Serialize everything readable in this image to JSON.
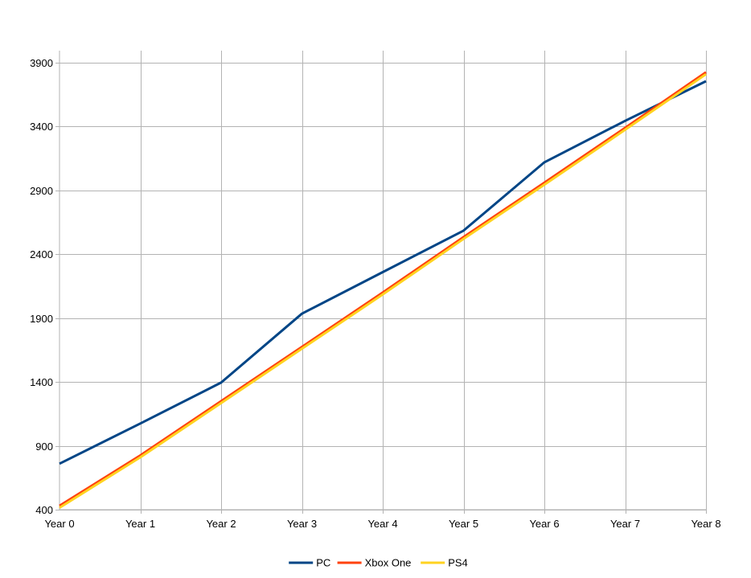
{
  "chart_data": {
    "type": "line",
    "title": "",
    "xlabel": "",
    "ylabel": "",
    "categories": [
      "Year 0",
      "Year 1",
      "Year 2",
      "Year 3",
      "Year 4",
      "Year 5",
      "Year 6",
      "Year 7",
      "Year 8"
    ],
    "ylim": [
      400,
      3900
    ],
    "yticks": [
      400,
      900,
      1400,
      1900,
      2400,
      2900,
      3400,
      3900
    ],
    "grid": true,
    "legend_position": "bottom",
    "series": [
      {
        "name": "PC",
        "color": "#004586",
        "values": [
          760,
          1075,
          1395,
          1935,
          2260,
          2585,
          3120,
          3445,
          3755
        ]
      },
      {
        "name": "Xbox One",
        "color": "#ff420e",
        "values": [
          430,
          825,
          1250,
          1675,
          2100,
          2535,
          2960,
          3390,
          3825
        ]
      },
      {
        "name": "PS4",
        "color": "#ffd320",
        "values": [
          415,
          810,
          1235,
          1660,
          2085,
          2520,
          2945,
          3375,
          3810
        ]
      }
    ]
  }
}
